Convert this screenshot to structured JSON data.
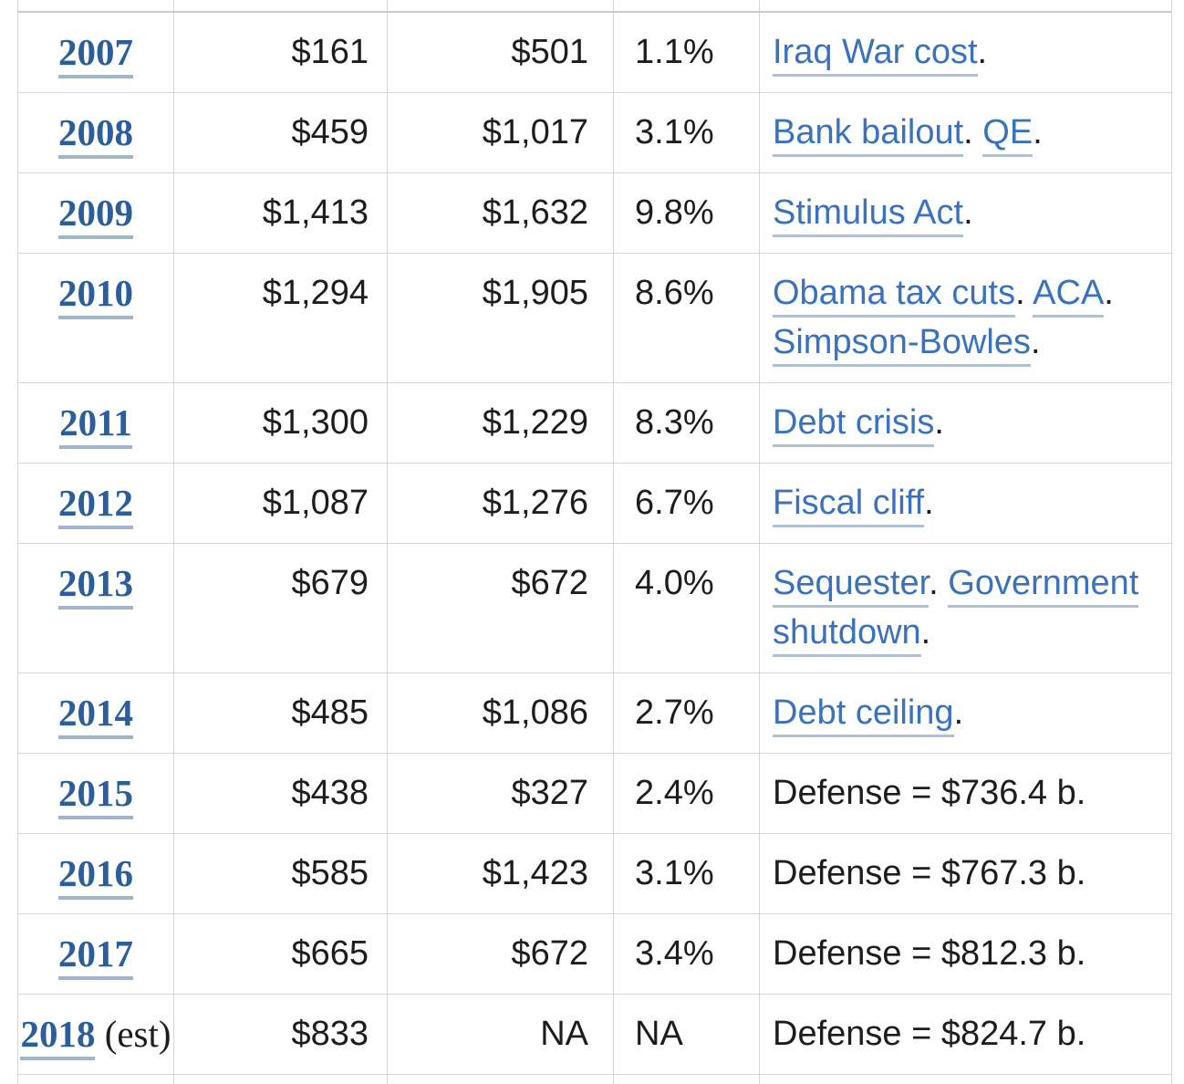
{
  "colors": {
    "border": "#d6d6d6",
    "text": "#1d1d1f",
    "year_link": "#2d5e9c",
    "year_underline": "#9fb4cd",
    "event_link": "#3a72bf",
    "event_underline": "#a6c3e1"
  },
  "table": {
    "description": "US federal deficit by fiscal year table fragment",
    "columns": [
      "year",
      "deficit_billions",
      "debt_increase_billions",
      "deficit_pct_gdp",
      "events"
    ],
    "rows": [
      {
        "year": "2007",
        "year_suffix": "",
        "deficit": "$161",
        "debt_increase": "$501",
        "pct_gdp": "1.1%",
        "tall": false,
        "events": [
          {
            "text": "Iraq War cost",
            "link": true
          },
          {
            "text": ".",
            "link": false
          }
        ]
      },
      {
        "year": "2008",
        "year_suffix": "",
        "deficit": "$459",
        "debt_increase": "$1,017",
        "pct_gdp": "3.1%",
        "tall": false,
        "events": [
          {
            "text": "Bank bailout",
            "link": true
          },
          {
            "text": ". ",
            "link": false
          },
          {
            "text": "QE",
            "link": true
          },
          {
            "text": ".",
            "link": false
          }
        ]
      },
      {
        "year": "2009",
        "year_suffix": "",
        "deficit": "$1,413",
        "debt_increase": "$1,632",
        "pct_gdp": "9.8%",
        "tall": false,
        "events": [
          {
            "text": "Stimulus Act",
            "link": true
          },
          {
            "text": ".",
            "link": false
          }
        ]
      },
      {
        "year": "2010",
        "year_suffix": "",
        "deficit": "$1,294",
        "debt_increase": "$1,905",
        "pct_gdp": "8.6%",
        "tall": true,
        "events": [
          {
            "text": "Obama tax cuts",
            "link": true
          },
          {
            "text": ". ",
            "link": false
          },
          {
            "text": "ACA",
            "link": true
          },
          {
            "text": ". ",
            "link": false
          },
          {
            "text": "Simpson-Bowles",
            "link": true
          },
          {
            "text": ".",
            "link": false
          }
        ]
      },
      {
        "year": "2011",
        "year_suffix": "",
        "deficit": "$1,300",
        "debt_increase": "$1,229",
        "pct_gdp": "8.3%",
        "tall": false,
        "events": [
          {
            "text": "Debt crisis",
            "link": true
          },
          {
            "text": ".",
            "link": false
          }
        ]
      },
      {
        "year": "2012",
        "year_suffix": "",
        "deficit": "$1,087",
        "debt_increase": "$1,276",
        "pct_gdp": "6.7%",
        "tall": false,
        "events": [
          {
            "text": "Fiscal cliff",
            "link": true
          },
          {
            "text": ".",
            "link": false
          }
        ]
      },
      {
        "year": "2013",
        "year_suffix": "",
        "deficit": "$679",
        "debt_increase": "$672",
        "pct_gdp": "4.0%",
        "tall": true,
        "events": [
          {
            "text": "Sequester",
            "link": true
          },
          {
            "text": ". ",
            "link": false
          },
          {
            "text": "Government shutdown",
            "link": true
          },
          {
            "text": ".",
            "link": false
          }
        ]
      },
      {
        "year": "2014",
        "year_suffix": "",
        "deficit": "$485",
        "debt_increase": "$1,086",
        "pct_gdp": "2.7%",
        "tall": false,
        "events": [
          {
            "text": "Debt ceiling",
            "link": true
          },
          {
            "text": ".",
            "link": false
          }
        ]
      },
      {
        "year": "2015",
        "year_suffix": "",
        "deficit": "$438",
        "debt_increase": "$327",
        "pct_gdp": "2.4%",
        "tall": false,
        "events": [
          {
            "text": "Defense = $736.4 b.",
            "link": false
          }
        ]
      },
      {
        "year": "2016",
        "year_suffix": "",
        "deficit": "$585",
        "debt_increase": "$1,423",
        "pct_gdp": "3.1%",
        "tall": false,
        "events": [
          {
            "text": "Defense = $767.3 b.",
            "link": false
          }
        ]
      },
      {
        "year": "2017",
        "year_suffix": "",
        "deficit": "$665",
        "debt_increase": "$672",
        "pct_gdp": "3.4%",
        "tall": false,
        "events": [
          {
            "text": "Defense = $812.3 b.",
            "link": false
          }
        ]
      },
      {
        "year": "2018",
        "year_suffix": " (est)",
        "deficit": "$833",
        "debt_increase": "NA",
        "pct_gdp": "NA",
        "tall": false,
        "events": [
          {
            "text": "Defense = $824.7 b.",
            "link": false
          }
        ]
      }
    ]
  }
}
